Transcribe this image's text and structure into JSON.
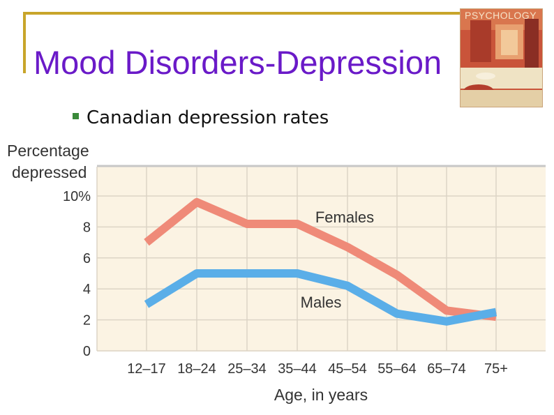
{
  "slide": {
    "title": "Mood Disorders-Depression",
    "bullet": "Canadian depression rates",
    "cover_text": "PSYCHOLOGY"
  },
  "colors": {
    "title": "#6a1ac8",
    "frame": "#c8a52a",
    "plot_bg": "#fbf3e3",
    "grid": "#dcd4c6",
    "females": "#ef8a78",
    "males": "#5aaee8"
  },
  "chart_data": {
    "type": "line",
    "ylabel_line1": "Percentage",
    "ylabel_line2": "depressed",
    "xlabel": "Age, in years",
    "categories": [
      "12–17",
      "18–24",
      "25–34",
      "35–44",
      "45–54",
      "55–64",
      "65–74",
      "75+"
    ],
    "y_ticks": [
      "10%",
      "8",
      "6",
      "4",
      "2",
      "0"
    ],
    "ylim": [
      0,
      10
    ],
    "series": [
      {
        "name": "Females",
        "values": [
          7.0,
          9.6,
          8.2,
          8.2,
          6.7,
          4.9,
          2.6,
          2.2
        ]
      },
      {
        "name": "Males",
        "values": [
          3.0,
          5.0,
          5.0,
          5.0,
          4.2,
          2.4,
          1.9,
          2.5
        ]
      }
    ]
  }
}
